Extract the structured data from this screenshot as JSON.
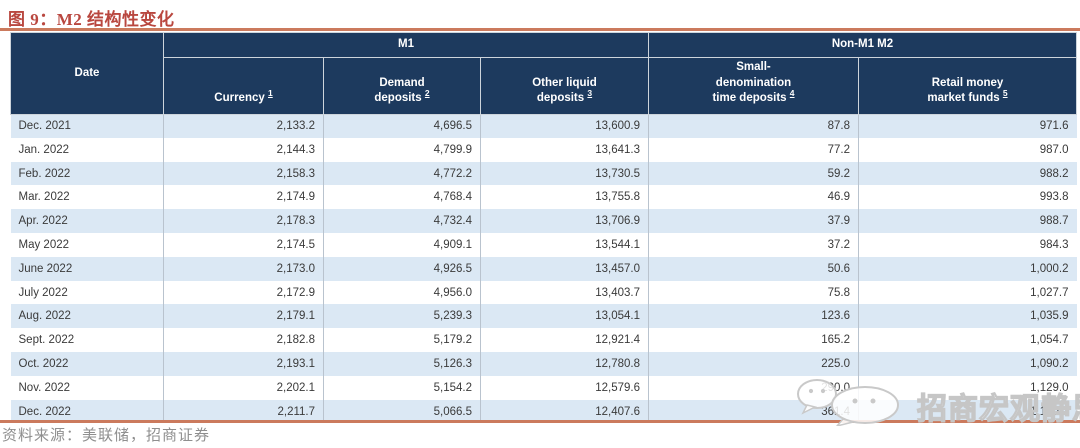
{
  "page": {
    "title": "图 9：M2 结构性变化",
    "source_note": "资料来源：美联储，招商证券",
    "watermark_text": "招商宏观静思录"
  },
  "table": {
    "groups": [
      {
        "label": "M1",
        "span": 3
      },
      {
        "label": "Non-M1 M2",
        "span": 2
      }
    ]
  },
  "chart_data": {
    "type": "table",
    "title": "图 9：M2 结构性变化",
    "columns": [
      {
        "key": "date",
        "label": "Date",
        "lines": [
          "Date"
        ],
        "footnote": "",
        "group": ""
      },
      {
        "key": "currency",
        "label": "Currency",
        "lines": [
          "Currency"
        ],
        "footnote": "1",
        "group": "M1"
      },
      {
        "key": "demand-deposits",
        "label": "Demand deposits",
        "lines": [
          "Demand",
          "deposits"
        ],
        "footnote": "2",
        "group": "M1"
      },
      {
        "key": "other-liquid-deposits",
        "label": "Other liquid deposits",
        "lines": [
          "Other liquid",
          "deposits"
        ],
        "footnote": "3",
        "group": "M1"
      },
      {
        "key": "small-denomination-time-deposits",
        "label": "Small-denomination time deposits",
        "lines": [
          "Small-",
          "denomination",
          "time deposits"
        ],
        "footnote": "4",
        "group": "Non-M1 M2"
      },
      {
        "key": "retail-money-market-funds",
        "label": "Retail money market funds",
        "lines": [
          "Retail money",
          "market funds"
        ],
        "footnote": "5",
        "group": "Non-M1 M2"
      }
    ],
    "rows": [
      [
        "Dec. 2021",
        "2,133.2",
        "4,696.5",
        "13,600.9",
        "87.8",
        "971.6"
      ],
      [
        "Jan. 2022",
        "2,144.3",
        "4,799.9",
        "13,641.3",
        "77.2",
        "987.0"
      ],
      [
        "Feb. 2022",
        "2,158.3",
        "4,772.2",
        "13,730.5",
        "59.2",
        "988.2"
      ],
      [
        "Mar. 2022",
        "2,174.9",
        "4,768.4",
        "13,755.8",
        "46.9",
        "993.8"
      ],
      [
        "Apr. 2022",
        "2,178.3",
        "4,732.4",
        "13,706.9",
        "37.9",
        "988.7"
      ],
      [
        "May 2022",
        "2,174.5",
        "4,909.1",
        "13,544.1",
        "37.2",
        "984.3"
      ],
      [
        "June 2022",
        "2,173.0",
        "4,926.5",
        "13,457.0",
        "50.6",
        "1,000.2"
      ],
      [
        "July 2022",
        "2,172.9",
        "4,956.0",
        "13,403.7",
        "75.8",
        "1,027.7"
      ],
      [
        "Aug. 2022",
        "2,179.1",
        "5,239.3",
        "13,054.1",
        "123.6",
        "1,035.9"
      ],
      [
        "Sept. 2022",
        "2,182.8",
        "5,179.2",
        "12,921.4",
        "165.2",
        "1,054.7"
      ],
      [
        "Oct. 2022",
        "2,193.1",
        "5,126.3",
        "12,780.8",
        "225.0",
        "1,090.2"
      ],
      [
        "Nov. 2022",
        "2,202.1",
        "5,154.2",
        "12,579.6",
        "290.0",
        "1,129.0"
      ],
      [
        "Dec. 2022",
        "2,211.7",
        "5,066.5",
        "12,407.6",
        "361.4",
        "1,160.2"
      ]
    ]
  },
  "colors": {
    "header_bg": "#1d3a5e",
    "row_alt_bg": "#dbe8f4",
    "accent_line": "#cb7a5d",
    "title_text": "#b9473f",
    "body_text": "#3a3a3a",
    "column_border": "#b9c3ce",
    "header_border": "#cdd4db",
    "source_text": "#8f8f8f",
    "watermark_gray": "#c6c6c6"
  }
}
